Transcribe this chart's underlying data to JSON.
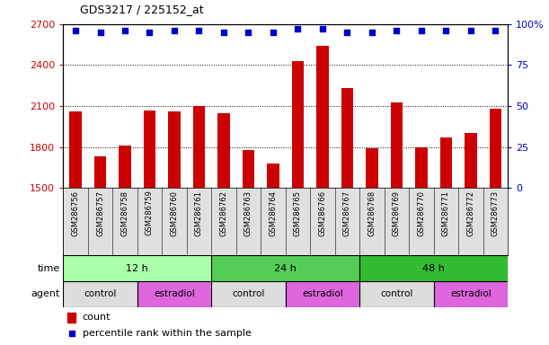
{
  "title": "GDS3217 / 225152_at",
  "samples": [
    "GSM286756",
    "GSM286757",
    "GSM286758",
    "GSM286759",
    "GSM286760",
    "GSM286761",
    "GSM286762",
    "GSM286763",
    "GSM286764",
    "GSM286765",
    "GSM286766",
    "GSM286767",
    "GSM286768",
    "GSM286769",
    "GSM286770",
    "GSM286771",
    "GSM286772",
    "GSM286773"
  ],
  "counts": [
    2060,
    1730,
    1810,
    2070,
    2060,
    2100,
    2050,
    1780,
    1680,
    2430,
    2540,
    2230,
    1790,
    2130,
    1800,
    1870,
    1900,
    2080
  ],
  "percentile_ranks": [
    96,
    95,
    96,
    95,
    96,
    96,
    95,
    95,
    95,
    97,
    97,
    95,
    95,
    96,
    96,
    96,
    96,
    96
  ],
  "ylim_left": [
    1500,
    2700
  ],
  "ylim_right": [
    0,
    100
  ],
  "yticks_left": [
    1500,
    1800,
    2100,
    2400,
    2700
  ],
  "yticks_right": [
    0,
    25,
    50,
    75,
    100
  ],
  "bar_color": "#cc0000",
  "dot_color": "#0000cc",
  "bar_width": 0.5,
  "background_color": "#ffffff",
  "time_groups": [
    {
      "label": "12 h",
      "start": 0,
      "end": 6,
      "color": "#aaffaa"
    },
    {
      "label": "24 h",
      "start": 6,
      "end": 12,
      "color": "#55cc55"
    },
    {
      "label": "48 h",
      "start": 12,
      "end": 18,
      "color": "#33bb33"
    }
  ],
  "agent_groups": [
    {
      "label": "control",
      "start": 0,
      "end": 3,
      "color": "#dddddd"
    },
    {
      "label": "estradiol",
      "start": 3,
      "end": 6,
      "color": "#dd66dd"
    },
    {
      "label": "control",
      "start": 6,
      "end": 9,
      "color": "#dddddd"
    },
    {
      "label": "estradiol",
      "start": 9,
      "end": 12,
      "color": "#dd66dd"
    },
    {
      "label": "control",
      "start": 12,
      "end": 15,
      "color": "#dddddd"
    },
    {
      "label": "estradiol",
      "start": 15,
      "end": 18,
      "color": "#dd66dd"
    }
  ],
  "time_label": "time",
  "agent_label": "agent",
  "legend_count_label": "count",
  "legend_percentile_label": "percentile rank within the sample",
  "left_axis_color": "#cc0000",
  "right_axis_color": "#0000cc",
  "tick_bg_color": "#e0e0e0"
}
